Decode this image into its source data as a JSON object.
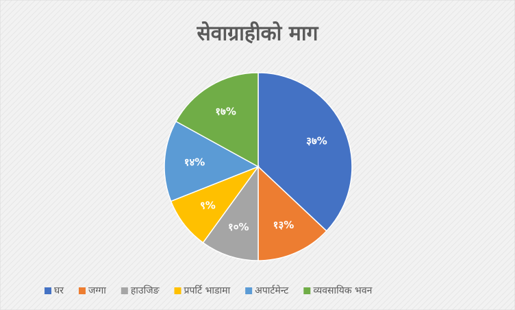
{
  "chart_data": {
    "type": "pie",
    "title": "सेवाग्राहीको माग",
    "categories": [
      "घर",
      "जग्गा",
      "हाउजिङ",
      "प्रपर्टि भाडामा",
      "अपार्टमेन्ट",
      "व्यवसायिक भवन"
    ],
    "values": [
      37,
      13,
      10,
      9,
      14,
      17
    ],
    "value_labels": [
      "३७%",
      "१३%",
      "१०%",
      "९%",
      "१४%",
      "१७%"
    ],
    "colors": [
      "#4472c4",
      "#ed7d31",
      "#a5a5a5",
      "#ffc000",
      "#5b9bd5",
      "#70ad47"
    ],
    "legend": "bottom"
  }
}
